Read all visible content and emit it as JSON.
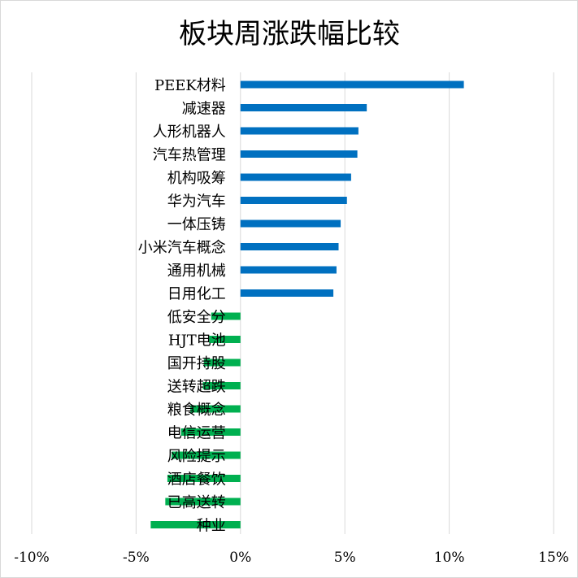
{
  "chart_data": {
    "type": "bar",
    "orientation": "horizontal",
    "title": "板块周涨跌幅比较",
    "xlabel": "",
    "ylabel": "",
    "xlim": [
      -10,
      15
    ],
    "x_ticks": [
      -10,
      -5,
      0,
      5,
      10,
      15
    ],
    "x_tick_labels": [
      "-10%",
      "-5%",
      "0%",
      "5%",
      "10%",
      "15%"
    ],
    "grid": "vertical",
    "legend": "none",
    "positive_color": "#0070c0",
    "negative_color": "#00b050",
    "categories": [
      "PEEK材料",
      "减速器",
      "人形机器人",
      "汽车热管理",
      "机构吸筹",
      "华为汽车",
      "一体压铸",
      "小米汽车概念",
      "通用机械",
      "日用化工",
      "低安全分",
      "HJT电池",
      "国开持股",
      "送转超跌",
      "粮食概念",
      "电信运营",
      "风险提示",
      "酒店餐饮",
      "已高送转",
      "种业"
    ],
    "values": [
      10.7,
      6.05,
      5.65,
      5.6,
      5.3,
      5.1,
      4.8,
      4.7,
      4.6,
      4.45,
      -1.4,
      -1.5,
      -1.75,
      -1.8,
      -2.4,
      -2.85,
      -3.3,
      -3.5,
      -3.6,
      -4.3
    ]
  }
}
